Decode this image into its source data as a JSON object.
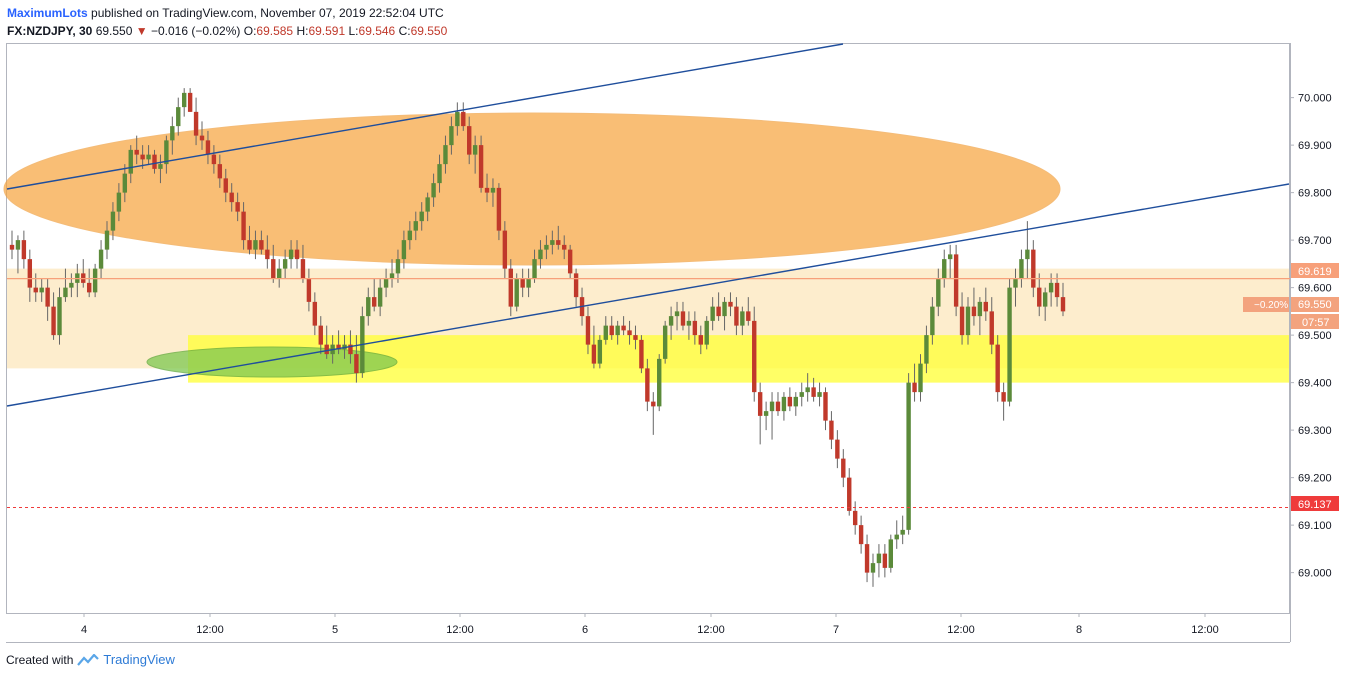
{
  "header": {
    "author": "MaximumLots",
    "published": "published on TradingView.com, November 07, 2019 22:52:04 UTC",
    "symbol": "FX:NZDJPY, 30",
    "last": "69.550",
    "change": "−0.016 (−0.02%)",
    "o_label": "O:",
    "o_val": "69.585",
    "h_label": "H:",
    "h_val": "69.591",
    "l_label": "L:",
    "l_val": "69.546",
    "c_label": "C:",
    "c_val": "69.550"
  },
  "footer": {
    "created_with": "Created with",
    "brand": "TradingView"
  },
  "colors": {
    "up": "#5b8a3a",
    "down": "#c0392b",
    "zone_orange": "#f7a33c",
    "zone_yellow": "#ffff33",
    "zone_green": "#7ec850",
    "trendline": "#1f4e9c",
    "red_level": "#ef3b3b"
  },
  "price_tags": {
    "resistance": "69.619",
    "current": "69.550",
    "current_change": "−0.20%",
    "countdown": "07:57",
    "support_red": "69.137"
  },
  "chart_data": {
    "type": "candlestick",
    "symbol": "FX:NZDJPY",
    "interval": "30",
    "y_ticks": [
      "70.000",
      "69.900",
      "69.800",
      "69.700",
      "69.600",
      "69.500",
      "69.400",
      "69.300",
      "69.200",
      "69.100",
      "69.000"
    ],
    "x_ticks": [
      "4",
      "12:00",
      "5",
      "12:00",
      "6",
      "12:00",
      "7",
      "12:00",
      "8",
      "12:00"
    ],
    "ylim": [
      68.915,
      70.115
    ],
    "levels": {
      "resistance": 69.619,
      "red_dashed": 69.137
    },
    "zones": {
      "light_orange": [
        69.43,
        69.64
      ],
      "yellow": [
        69.4,
        69.5
      ]
    },
    "candles": [
      [
        69.69,
        69.72,
        69.66,
        69.68
      ],
      [
        69.68,
        69.71,
        69.63,
        69.7
      ],
      [
        69.7,
        69.72,
        69.64,
        69.66
      ],
      [
        69.66,
        69.68,
        69.57,
        69.6
      ],
      [
        69.6,
        69.63,
        69.57,
        69.59
      ],
      [
        69.59,
        69.62,
        69.57,
        69.6
      ],
      [
        69.6,
        69.62,
        69.53,
        69.56
      ],
      [
        69.56,
        69.59,
        69.49,
        69.5
      ],
      [
        69.5,
        69.6,
        69.48,
        69.58
      ],
      [
        69.58,
        69.64,
        69.57,
        69.6
      ],
      [
        69.6,
        69.63,
        69.58,
        69.61
      ],
      [
        69.61,
        69.65,
        69.58,
        69.63
      ],
      [
        69.63,
        69.66,
        69.6,
        69.61
      ],
      [
        69.61,
        69.64,
        69.58,
        69.59
      ],
      [
        69.59,
        69.65,
        69.58,
        69.64
      ],
      [
        69.64,
        69.7,
        69.62,
        69.68
      ],
      [
        69.68,
        69.74,
        69.66,
        69.72
      ],
      [
        69.72,
        69.78,
        69.7,
        69.76
      ],
      [
        69.76,
        69.82,
        69.74,
        69.8
      ],
      [
        69.8,
        69.86,
        69.78,
        69.84
      ],
      [
        69.84,
        69.9,
        69.82,
        69.89
      ],
      [
        69.89,
        69.92,
        69.86,
        69.88
      ],
      [
        69.88,
        69.9,
        69.85,
        69.87
      ],
      [
        69.87,
        69.9,
        69.86,
        69.88
      ],
      [
        69.88,
        69.89,
        69.84,
        69.85
      ],
      [
        69.85,
        69.88,
        69.82,
        69.86
      ],
      [
        69.86,
        69.92,
        69.84,
        69.91
      ],
      [
        69.91,
        69.96,
        69.88,
        69.94
      ],
      [
        69.94,
        70.0,
        69.92,
        69.98
      ],
      [
        69.98,
        70.02,
        69.96,
        70.01
      ],
      [
        70.01,
        70.02,
        69.97,
        69.97
      ],
      [
        69.97,
        70.0,
        69.9,
        69.92
      ],
      [
        69.92,
        69.95,
        69.89,
        69.91
      ],
      [
        69.91,
        69.93,
        69.86,
        69.88
      ],
      [
        69.88,
        69.9,
        69.84,
        69.86
      ],
      [
        69.86,
        69.88,
        69.81,
        69.83
      ],
      [
        69.83,
        69.85,
        69.78,
        69.8
      ],
      [
        69.8,
        69.82,
        69.76,
        69.78
      ],
      [
        69.78,
        69.8,
        69.74,
        69.76
      ],
      [
        69.76,
        69.78,
        69.68,
        69.7
      ],
      [
        69.7,
        69.73,
        69.67,
        69.68
      ],
      [
        69.68,
        69.72,
        69.66,
        69.7
      ],
      [
        69.7,
        69.72,
        69.67,
        69.68
      ],
      [
        69.68,
        69.71,
        69.64,
        69.66
      ],
      [
        69.66,
        69.69,
        69.61,
        69.62
      ],
      [
        69.62,
        69.66,
        69.6,
        69.64
      ],
      [
        69.64,
        69.68,
        69.62,
        69.66
      ],
      [
        69.66,
        69.7,
        69.64,
        69.68
      ],
      [
        69.68,
        69.7,
        69.64,
        69.66
      ],
      [
        69.66,
        69.69,
        69.61,
        69.62
      ],
      [
        69.62,
        69.64,
        69.55,
        69.57
      ],
      [
        69.57,
        69.59,
        69.5,
        69.52
      ],
      [
        69.52,
        69.54,
        69.46,
        69.48
      ],
      [
        69.48,
        69.52,
        69.45,
        69.46
      ],
      [
        69.46,
        69.5,
        69.44,
        69.48
      ],
      [
        69.48,
        69.51,
        69.46,
        69.47
      ],
      [
        69.47,
        69.5,
        69.45,
        69.48
      ],
      [
        69.48,
        69.51,
        69.44,
        69.46
      ],
      [
        69.46,
        69.5,
        69.4,
        69.42
      ],
      [
        69.42,
        69.56,
        69.41,
        69.54
      ],
      [
        69.54,
        69.6,
        69.52,
        69.58
      ],
      [
        69.58,
        69.62,
        69.55,
        69.56
      ],
      [
        69.56,
        69.62,
        69.54,
        69.6
      ],
      [
        69.6,
        69.64,
        69.58,
        69.62
      ],
      [
        69.62,
        69.66,
        69.6,
        69.63
      ],
      [
        69.63,
        69.68,
        69.61,
        69.66
      ],
      [
        69.66,
        69.72,
        69.64,
        69.7
      ],
      [
        69.7,
        69.74,
        69.68,
        69.72
      ],
      [
        69.72,
        69.76,
        69.7,
        69.74
      ],
      [
        69.74,
        69.78,
        69.72,
        69.76
      ],
      [
        69.76,
        69.8,
        69.74,
        69.79
      ],
      [
        69.79,
        69.84,
        69.77,
        69.82
      ],
      [
        69.82,
        69.88,
        69.8,
        69.86
      ],
      [
        69.86,
        69.92,
        69.84,
        69.9
      ],
      [
        69.9,
        69.96,
        69.88,
        69.94
      ],
      [
        69.94,
        69.99,
        69.92,
        69.97
      ],
      [
        69.97,
        69.99,
        69.93,
        69.94
      ],
      [
        69.94,
        69.96,
        69.86,
        69.88
      ],
      [
        69.88,
        69.92,
        69.84,
        69.9
      ],
      [
        69.9,
        69.92,
        69.8,
        69.81
      ],
      [
        69.81,
        69.84,
        69.78,
        69.8
      ],
      [
        69.8,
        69.83,
        69.77,
        69.81
      ],
      [
        69.81,
        69.82,
        69.7,
        69.72
      ],
      [
        69.72,
        69.74,
        69.62,
        69.64
      ],
      [
        69.64,
        69.66,
        69.54,
        69.56
      ],
      [
        69.56,
        69.63,
        69.55,
        69.62
      ],
      [
        69.62,
        69.64,
        69.58,
        69.6
      ],
      [
        69.6,
        69.64,
        69.58,
        69.62
      ],
      [
        69.62,
        69.68,
        69.61,
        69.66
      ],
      [
        69.66,
        69.7,
        69.64,
        69.68
      ],
      [
        69.68,
        69.71,
        69.66,
        69.69
      ],
      [
        69.69,
        69.72,
        69.67,
        69.7
      ],
      [
        69.7,
        69.73,
        69.68,
        69.69
      ],
      [
        69.69,
        69.71,
        69.66,
        69.68
      ],
      [
        69.68,
        69.69,
        69.62,
        69.63
      ],
      [
        69.63,
        69.64,
        69.56,
        69.58
      ],
      [
        69.58,
        69.6,
        69.52,
        69.54
      ],
      [
        69.54,
        69.56,
        69.46,
        69.48
      ],
      [
        69.48,
        69.52,
        69.43,
        69.44
      ],
      [
        69.44,
        69.5,
        69.43,
        69.49
      ],
      [
        69.49,
        69.54,
        69.48,
        69.52
      ],
      [
        69.52,
        69.54,
        69.49,
        69.5
      ],
      [
        69.5,
        69.53,
        69.48,
        69.52
      ],
      [
        69.52,
        69.54,
        69.5,
        69.51
      ],
      [
        69.51,
        69.53,
        69.48,
        69.5
      ],
      [
        69.5,
        69.52,
        69.47,
        69.49
      ],
      [
        69.49,
        69.5,
        69.42,
        69.43
      ],
      [
        69.43,
        69.45,
        69.34,
        69.36
      ],
      [
        69.36,
        69.38,
        69.29,
        69.35
      ],
      [
        69.35,
        69.46,
        69.34,
        69.45
      ],
      [
        69.45,
        69.53,
        69.44,
        69.52
      ],
      [
        69.52,
        69.56,
        69.49,
        69.54
      ],
      [
        69.54,
        69.57,
        69.51,
        69.55
      ],
      [
        69.55,
        69.57,
        69.51,
        69.52
      ],
      [
        69.52,
        69.55,
        69.49,
        69.53
      ],
      [
        69.53,
        69.55,
        69.48,
        69.5
      ],
      [
        69.5,
        69.52,
        69.46,
        69.48
      ],
      [
        69.48,
        69.54,
        69.47,
        69.53
      ],
      [
        69.53,
        69.58,
        69.51,
        69.56
      ],
      [
        69.56,
        69.59,
        69.53,
        69.54
      ],
      [
        69.54,
        69.58,
        69.51,
        69.57
      ],
      [
        69.57,
        69.59,
        69.54,
        69.56
      ],
      [
        69.56,
        69.58,
        69.5,
        69.52
      ],
      [
        69.52,
        69.56,
        69.5,
        69.55
      ],
      [
        69.55,
        69.58,
        69.52,
        69.53
      ],
      [
        69.53,
        69.56,
        69.36,
        69.38
      ],
      [
        69.38,
        69.4,
        69.27,
        69.33
      ],
      [
        69.33,
        69.36,
        69.3,
        69.34
      ],
      [
        69.34,
        69.38,
        69.28,
        69.36
      ],
      [
        69.36,
        69.38,
        69.33,
        69.34
      ],
      [
        69.34,
        69.38,
        69.32,
        69.37
      ],
      [
        69.37,
        69.39,
        69.34,
        69.35
      ],
      [
        69.35,
        69.38,
        69.33,
        69.37
      ],
      [
        69.37,
        69.4,
        69.35,
        69.38
      ],
      [
        69.38,
        69.42,
        69.36,
        69.39
      ],
      [
        69.39,
        69.41,
        69.36,
        69.37
      ],
      [
        69.37,
        69.4,
        69.35,
        69.38
      ],
      [
        69.38,
        69.39,
        69.3,
        69.32
      ],
      [
        69.32,
        69.34,
        69.26,
        69.28
      ],
      [
        69.28,
        69.3,
        69.22,
        69.24
      ],
      [
        69.24,
        69.26,
        69.18,
        69.2
      ],
      [
        69.2,
        69.22,
        69.12,
        69.13
      ],
      [
        69.13,
        69.15,
        69.08,
        69.1
      ],
      [
        69.1,
        69.12,
        69.04,
        69.06
      ],
      [
        69.06,
        69.08,
        68.98,
        69.0
      ],
      [
        69.0,
        69.04,
        68.97,
        69.02
      ],
      [
        69.02,
        69.06,
        68.99,
        69.04
      ],
      [
        69.04,
        69.06,
        68.99,
        69.01
      ],
      [
        69.01,
        69.08,
        69.0,
        69.07
      ],
      [
        69.07,
        69.11,
        69.05,
        69.08
      ],
      [
        69.08,
        69.12,
        69.06,
        69.09
      ],
      [
        69.09,
        69.42,
        69.08,
        69.4
      ],
      [
        69.4,
        69.44,
        69.36,
        69.38
      ],
      [
        69.38,
        69.46,
        69.36,
        69.44
      ],
      [
        69.44,
        69.52,
        69.42,
        69.5
      ],
      [
        69.5,
        69.58,
        69.48,
        69.56
      ],
      [
        69.56,
        69.64,
        69.54,
        69.62
      ],
      [
        69.62,
        69.68,
        69.6,
        69.66
      ],
      [
        69.66,
        69.69,
        69.62,
        69.67
      ],
      [
        69.67,
        69.69,
        69.54,
        69.56
      ],
      [
        69.56,
        69.59,
        69.48,
        69.5
      ],
      [
        69.5,
        69.58,
        69.48,
        69.56
      ],
      [
        69.56,
        69.6,
        69.52,
        69.54
      ],
      [
        69.54,
        69.58,
        69.5,
        69.57
      ],
      [
        69.57,
        69.6,
        69.53,
        69.55
      ],
      [
        69.55,
        69.58,
        69.46,
        69.48
      ],
      [
        69.48,
        69.5,
        69.36,
        69.38
      ],
      [
        69.38,
        69.4,
        69.32,
        69.36
      ],
      [
        69.36,
        69.62,
        69.35,
        69.6
      ],
      [
        69.6,
        69.64,
        69.56,
        69.62
      ],
      [
        69.62,
        69.68,
        69.6,
        69.66
      ],
      [
        69.66,
        69.74,
        69.62,
        69.68
      ],
      [
        69.68,
        69.7,
        69.58,
        69.6
      ],
      [
        69.6,
        69.63,
        69.54,
        69.56
      ],
      [
        69.56,
        69.6,
        69.53,
        69.59
      ],
      [
        69.59,
        69.63,
        69.56,
        69.61
      ],
      [
        69.61,
        69.63,
        69.56,
        69.58
      ],
      [
        69.58,
        69.61,
        69.54,
        69.55
      ]
    ]
  }
}
